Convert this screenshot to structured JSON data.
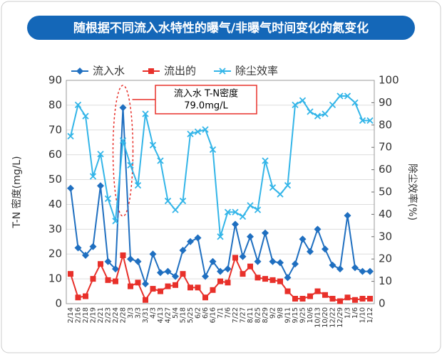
{
  "chart_data": {
    "type": "line",
    "title": "随根据不同流入水特性的曝气/非曝气时间变化的氮变化",
    "ylabel": "T-N 密度(mg/L)",
    "y2label": "除尘效率(%)",
    "annotation": [
      "流入水 T-N密度",
      "79.0mg/L"
    ],
    "categories": [
      "2/14",
      "2/16",
      "2/18",
      "2/19",
      "2/21",
      "2/23",
      "2/24",
      "2/28",
      "3/3",
      "3/3",
      "3/31",
      "4/3",
      "4/13",
      "4/27",
      "5/4",
      "5/18",
      "5/25",
      "6/2",
      "6/6",
      "6/16",
      "7/1",
      "7/6",
      "7/22",
      "7/27",
      "8/11",
      "8/25",
      "8/29",
      "9/2",
      "9/8",
      "9/11",
      "9/15",
      "9/25",
      "10/6",
      "10/13",
      "10/20",
      "12/22",
      "12/29",
      "1/3",
      "1/6",
      "1/10",
      "1/12"
    ],
    "series": [
      {
        "name": "流入水",
        "color": "#1f6fc0",
        "marker": "diamond",
        "values": [
          46.5,
          22.5,
          19.5,
          23,
          47.5,
          17,
          14,
          79,
          18,
          17,
          8,
          20,
          12.5,
          13,
          11,
          21.5,
          25,
          26.5,
          11,
          17,
          13,
          14,
          32,
          19,
          27,
          17,
          28.5,
          17,
          16.5,
          10.5,
          16,
          26,
          21,
          30,
          22,
          15.5,
          14,
          35.5,
          14.5,
          13,
          13
        ]
      },
      {
        "name": "流出的",
        "color": "#e8302a",
        "marker": "square",
        "values": [
          12,
          2.5,
          3,
          10,
          16,
          9.5,
          9,
          19.5,
          7,
          8.5,
          1.5,
          6,
          5,
          7,
          7.5,
          12,
          6.5,
          6.5,
          2.5,
          5.5,
          9,
          8.5,
          18.5,
          12,
          15,
          10.5,
          10,
          9.5,
          9,
          5,
          2,
          2,
          3,
          5,
          3.5,
          2,
          1,
          2.5,
          1.5,
          2,
          2
        ]
      },
      {
        "name": "除尘效率",
        "color": "#33b5e8",
        "marker": "x",
        "axis": "y2",
        "values": [
          75,
          89,
          84,
          57,
          67,
          47,
          37,
          73,
          62,
          53,
          85,
          71,
          64,
          46,
          42,
          46,
          76,
          77,
          78,
          69,
          30,
          41,
          41,
          39,
          44,
          42,
          64,
          52,
          49,
          53,
          89,
          91,
          86,
          84,
          85,
          89,
          93,
          93,
          90,
          82,
          82
        ]
      }
    ],
    "ylim": [
      0,
      90
    ],
    "yticks": [
      0,
      10,
      20,
      30,
      40,
      50,
      60,
      70,
      80,
      90
    ],
    "y2lim": [
      0,
      100
    ],
    "y2ticks": [
      0,
      10,
      20,
      30,
      40,
      50,
      60,
      70,
      80,
      90,
      100
    ],
    "grid": true,
    "legend": "top-left"
  }
}
